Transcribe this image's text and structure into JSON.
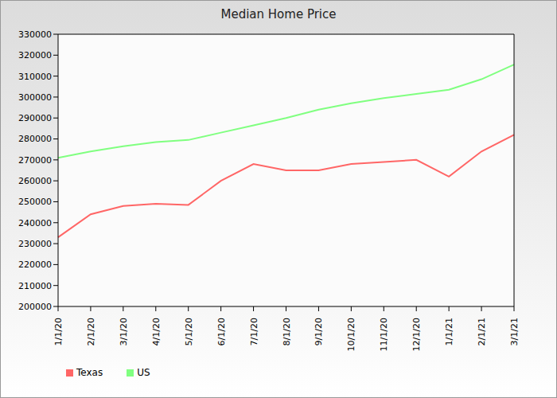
{
  "chart_data": {
    "type": "line",
    "title": "Median Home Price",
    "categories": [
      "1/1/20",
      "2/1/20",
      "3/1/20",
      "4/1/20",
      "5/1/20",
      "6/1/20",
      "7/1/20",
      "8/1/20",
      "9/1/20",
      "10/1/20",
      "11/1/20",
      "12/1/20",
      "1/1/21",
      "2/1/21",
      "3/1/21"
    ],
    "series": [
      {
        "name": "Texas",
        "color": "#ff6666",
        "values": [
          233000,
          244000,
          248000,
          249000,
          248500,
          260000,
          268000,
          265000,
          265000,
          268000,
          269000,
          270000,
          262000,
          274000,
          282000
        ]
      },
      {
        "name": "US",
        "color": "#80ff80",
        "values": [
          271000,
          274000,
          276500,
          278500,
          279500,
          283000,
          286500,
          290000,
          294000,
          297000,
          299500,
          301500,
          303500,
          308500,
          315500
        ]
      }
    ],
    "ylim": [
      200000,
      330000
    ],
    "yticks": [
      200000,
      210000,
      220000,
      230000,
      240000,
      250000,
      260000,
      270000,
      280000,
      290000,
      300000,
      310000,
      320000,
      330000
    ],
    "grid": false,
    "legend": "bottom-left"
  }
}
